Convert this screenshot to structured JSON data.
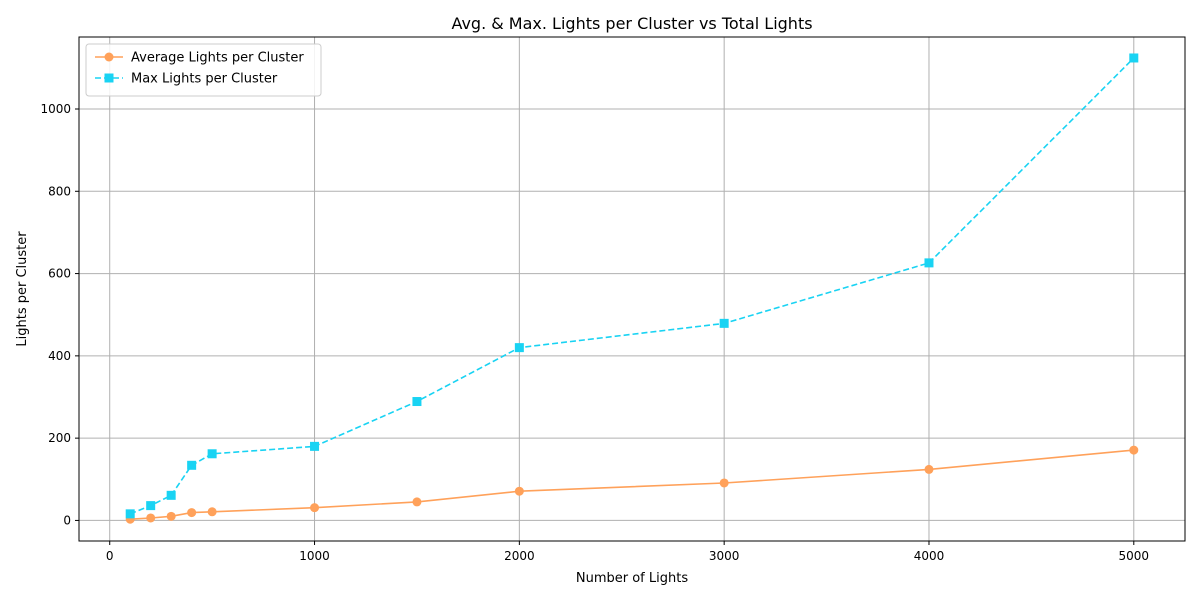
{
  "chart_data": {
    "type": "line",
    "title": "Avg. & Max. Lights per Cluster vs Total Lights",
    "xlabel": "Number of Lights",
    "ylabel": "Lights per Cluster",
    "xlim": [
      -150,
      5250
    ],
    "ylim": [
      -50,
      1175
    ],
    "xticks": [
      0,
      1000,
      2000,
      3000,
      4000,
      5000
    ],
    "yticks": [
      0,
      200,
      400,
      600,
      800,
      1000
    ],
    "grid": true,
    "legend_position": "upper-left",
    "x": [
      100,
      200,
      300,
      400,
      500,
      1000,
      1500,
      2000,
      3000,
      4000,
      5000
    ],
    "series": [
      {
        "name": "Average Lights per Cluster",
        "values": [
          3,
          6,
          10,
          19,
          21,
          31,
          45,
          71,
          91,
          124,
          171
        ],
        "color": "#FFA15A",
        "marker": "circle",
        "linestyle": "solid"
      },
      {
        "name": "Max Lights per Cluster",
        "values": [
          16,
          36,
          61,
          134,
          162,
          180,
          289,
          420,
          479,
          626,
          1124
        ],
        "color": "#19D3F3",
        "marker": "square",
        "linestyle": "dashed"
      }
    ]
  }
}
